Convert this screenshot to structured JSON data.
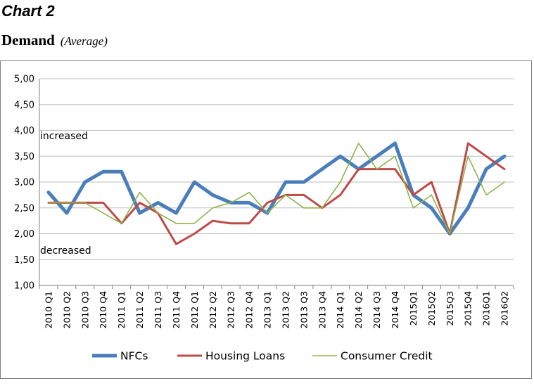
{
  "heading": "Chart 2",
  "chart_data": {
    "type": "line",
    "title": "Demand",
    "subtitle": "(Average)",
    "xlabel": "",
    "ylabel": "",
    "ylim": [
      1.0,
      5.0
    ],
    "yticks": [
      "1,00",
      "1,50",
      "2,00",
      "2,50",
      "3,00",
      "3,50",
      "4,00",
      "4,50",
      "5,00"
    ],
    "grid": true,
    "legend_position": "bottom",
    "categories": [
      "2010 Q1",
      "2010 Q2",
      "2010 Q3",
      "2010 Q4",
      "2011 Q1",
      "2011 Q2",
      "2011 Q3",
      "2011 Q4",
      "2012 Q1",
      "2012 Q2",
      "2012 Q3",
      "2012 Q4",
      "2013 Q1",
      "2013 Q2",
      "2013 Q3",
      "2013 Q4",
      "2014 Q1",
      "2014 Q2",
      "2014 Q3",
      "2014 Q4",
      "2015Q1",
      "2015Q2",
      "2015Q3",
      "2015Q4",
      "2016Q1",
      "2016Q2"
    ],
    "annotations": [
      {
        "text": "increased",
        "y": 3.9
      },
      {
        "text": "decreased",
        "y": 1.68
      }
    ],
    "series": [
      {
        "name": "NFCs",
        "color": "#4a7ebb",
        "values": [
          2.8,
          2.4,
          3.0,
          3.2,
          3.2,
          2.4,
          2.6,
          2.4,
          3.0,
          2.75,
          2.6,
          2.6,
          2.4,
          3.0,
          3.0,
          3.25,
          3.5,
          3.25,
          3.5,
          3.75,
          2.75,
          2.5,
          2.0,
          2.5,
          3.25,
          3.5
        ]
      },
      {
        "name": "Housing Loans",
        "color": "#be4b48",
        "values": [
          2.6,
          2.6,
          2.6,
          2.6,
          2.2,
          2.6,
          2.4,
          1.8,
          2.0,
          2.25,
          2.2,
          2.2,
          2.6,
          2.75,
          2.75,
          2.5,
          2.75,
          3.25,
          3.25,
          3.25,
          2.75,
          3.0,
          2.0,
          3.75,
          3.5,
          3.25
        ]
      },
      {
        "name": "Consumer Credit",
        "color": "#8db44b",
        "values": [
          2.6,
          2.6,
          2.6,
          2.4,
          2.2,
          2.8,
          2.4,
          2.2,
          2.2,
          2.5,
          2.6,
          2.8,
          2.4,
          2.75,
          2.5,
          2.5,
          3.0,
          3.75,
          3.25,
          3.5,
          2.5,
          2.75,
          2.0,
          3.5,
          2.75,
          3.0
        ]
      }
    ]
  }
}
